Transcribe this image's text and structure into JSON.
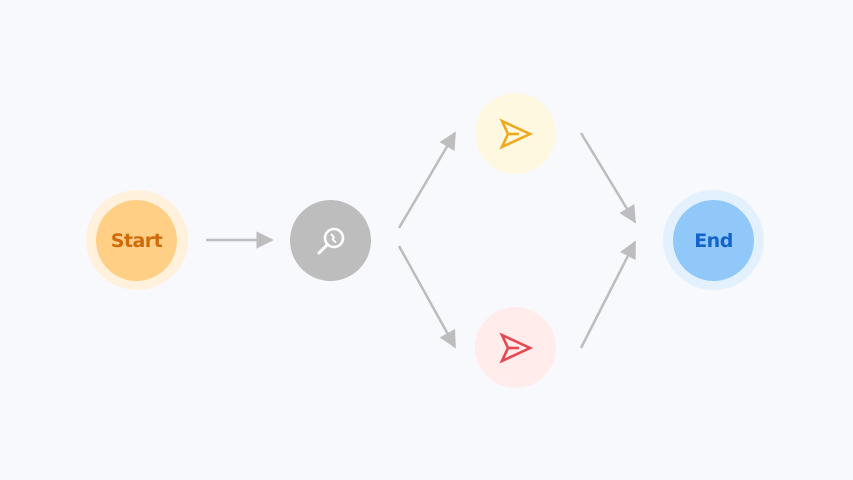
{
  "nodes": {
    "start": {
      "label": "Start",
      "color": "#ffcf86",
      "text_color": "#d06b0c"
    },
    "search": {
      "icon": "search-icon",
      "color": "#bdbdbd"
    },
    "send_top": {
      "icon": "send-icon",
      "color": "#fff8e1",
      "icon_color": "#f0a81e"
    },
    "send_bottom": {
      "icon": "send-icon",
      "color": "#ffeceb",
      "icon_color": "#e8474f"
    },
    "end": {
      "label": "End",
      "color": "#90c9f9",
      "text_color": "#1463cc"
    }
  },
  "edges": [
    {
      "from": "start",
      "to": "search"
    },
    {
      "from": "search",
      "to": "send_top"
    },
    {
      "from": "search",
      "to": "send_bottom"
    },
    {
      "from": "send_top",
      "to": "end"
    },
    {
      "from": "send_bottom",
      "to": "end"
    }
  ],
  "colors": {
    "background": "#f7f9fd",
    "edge": "#bdbdbd"
  }
}
